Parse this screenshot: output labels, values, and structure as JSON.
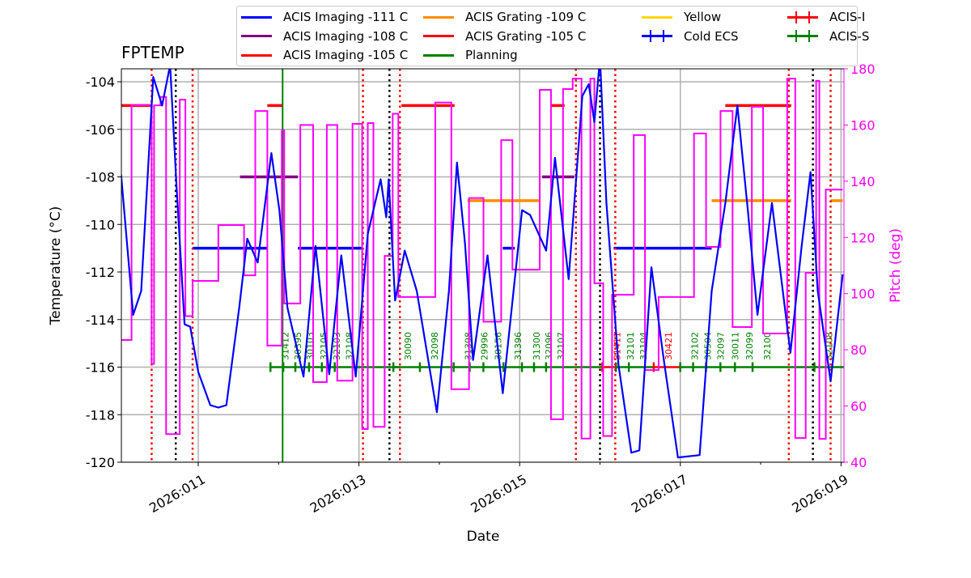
{
  "chart_data": {
    "type": "line",
    "title": "FPTEMP",
    "xlabel": "Date",
    "ylabel": "Temperature ($^\\circ$C)",
    "ylabel_display": "Temperature (°C)",
    "y2label": "Pitch (deg)",
    "xlim": [
      10.04,
      19.02
    ],
    "ylim": [
      -120,
      -103.46
    ],
    "y2lim": [
      40,
      180
    ],
    "grid": true,
    "legend_placement": "top",
    "x_ticks": [
      {
        "day": 11,
        "label": "2026:011"
      },
      {
        "day": 13,
        "label": "2026:013"
      },
      {
        "day": 15,
        "label": "2026:015"
      },
      {
        "day": 17,
        "label": "2026:017"
      },
      {
        "day": 19,
        "label": "2026:019"
      }
    ],
    "y_ticks": [
      -104,
      -106,
      -108,
      -110,
      -112,
      -114,
      -116,
      -118,
      -120
    ],
    "y2_ticks": [
      40,
      60,
      80,
      100,
      120,
      140,
      160,
      180
    ],
    "colors": {
      "temp": "#0000ff",
      "pitch": "#ff00ff",
      "acis_s": "#008000",
      "acis_i": "#ff0000"
    },
    "temperature": [
      [
        10.04,
        -107.9
      ],
      [
        10.19,
        -113.8
      ],
      [
        10.29,
        -112.8
      ],
      [
        10.44,
        -103.8
      ],
      [
        10.55,
        -105.0
      ],
      [
        10.65,
        -103.3
      ],
      [
        10.73,
        -108.4
      ],
      [
        10.83,
        -114.2
      ],
      [
        10.9,
        -114.3
      ],
      [
        11.0,
        -116.2
      ],
      [
        11.15,
        -117.6
      ],
      [
        11.25,
        -117.7
      ],
      [
        11.35,
        -117.6
      ],
      [
        11.51,
        -113.5
      ],
      [
        11.61,
        -110.6
      ],
      [
        11.74,
        -111.6
      ],
      [
        11.91,
        -107.0
      ],
      [
        12.01,
        -109.4
      ],
      [
        12.11,
        -113.5
      ],
      [
        12.31,
        -116.4
      ],
      [
        12.46,
        -110.9
      ],
      [
        12.63,
        -116.3
      ],
      [
        12.78,
        -111.3
      ],
      [
        12.96,
        -116.4
      ],
      [
        13.11,
        -110.4
      ],
      [
        13.27,
        -108.1
      ],
      [
        13.34,
        -109.7
      ],
      [
        13.37,
        -108.1
      ],
      [
        13.45,
        -113.2
      ],
      [
        13.57,
        -111.1
      ],
      [
        13.72,
        -112.8
      ],
      [
        13.97,
        -117.9
      ],
      [
        14.12,
        -112.8
      ],
      [
        14.22,
        -107.4
      ],
      [
        14.32,
        -110.8
      ],
      [
        14.42,
        -115.7
      ],
      [
        14.6,
        -111.3
      ],
      [
        14.79,
        -117.1
      ],
      [
        15.03,
        -109.4
      ],
      [
        15.13,
        -109.6
      ],
      [
        15.33,
        -111.1
      ],
      [
        15.44,
        -107.2
      ],
      [
        15.61,
        -112.3
      ],
      [
        15.78,
        -104.6
      ],
      [
        15.86,
        -104.1
      ],
      [
        15.93,
        -105.7
      ],
      [
        16.0,
        -103.0
      ],
      [
        16.08,
        -109.1
      ],
      [
        16.23,
        -115.9
      ],
      [
        16.39,
        -119.6
      ],
      [
        16.49,
        -119.5
      ],
      [
        16.64,
        -111.8
      ],
      [
        16.79,
        -115.6
      ],
      [
        16.97,
        -119.8
      ],
      [
        17.24,
        -119.7
      ],
      [
        17.39,
        -112.8
      ],
      [
        17.56,
        -109.1
      ],
      [
        17.71,
        -105.0
      ],
      [
        17.84,
        -109.4
      ],
      [
        17.96,
        -113.8
      ],
      [
        18.14,
        -109.1
      ],
      [
        18.37,
        -115.4
      ],
      [
        18.51,
        -110.9
      ],
      [
        18.62,
        -107.8
      ],
      [
        18.71,
        -112.8
      ],
      [
        18.87,
        -116.6
      ],
      [
        19.02,
        -112.1
      ]
    ],
    "pitch": [
      [
        10.04,
        83.5
      ],
      [
        10.17,
        83.5
      ],
      [
        10.17,
        167
      ],
      [
        10.42,
        167
      ],
      [
        10.42,
        75
      ],
      [
        10.45,
        75
      ],
      [
        10.45,
        167
      ],
      [
        10.53,
        167
      ],
      [
        10.53,
        170
      ],
      [
        10.6,
        170
      ],
      [
        10.6,
        50
      ],
      [
        10.77,
        50
      ],
      [
        10.77,
        169
      ],
      [
        10.84,
        169
      ],
      [
        10.84,
        92
      ],
      [
        10.93,
        92
      ],
      [
        10.93,
        104.5
      ],
      [
        11.25,
        104.5
      ],
      [
        11.25,
        124.4
      ],
      [
        11.57,
        124.4
      ],
      [
        11.57,
        106.5
      ],
      [
        11.71,
        106.5
      ],
      [
        11.71,
        165
      ],
      [
        11.86,
        165
      ],
      [
        11.86,
        81.5
      ],
      [
        12.04,
        81.5
      ],
      [
        12.04,
        158
      ],
      [
        12.07,
        158
      ],
      [
        12.07,
        96.5
      ],
      [
        12.27,
        96.5
      ],
      [
        12.27,
        160
      ],
      [
        12.43,
        160
      ],
      [
        12.43,
        68.5
      ],
      [
        12.6,
        68.5
      ],
      [
        12.6,
        160
      ],
      [
        12.73,
        160
      ],
      [
        12.73,
        69
      ],
      [
        12.92,
        69
      ],
      [
        12.92,
        160.4
      ],
      [
        13.04,
        160.4
      ],
      [
        13.04,
        51.8
      ],
      [
        13.11,
        51.8
      ],
      [
        13.11,
        160.7
      ],
      [
        13.18,
        160.7
      ],
      [
        13.18,
        52.6
      ],
      [
        13.32,
        52.6
      ],
      [
        13.32,
        113.4
      ],
      [
        13.42,
        113.4
      ],
      [
        13.42,
        164
      ],
      [
        13.49,
        164
      ],
      [
        13.49,
        98.8
      ],
      [
        13.95,
        98.8
      ],
      [
        13.95,
        168
      ],
      [
        14.15,
        168
      ],
      [
        14.15,
        66
      ],
      [
        14.37,
        66
      ],
      [
        14.37,
        134
      ],
      [
        14.55,
        134
      ],
      [
        14.55,
        90
      ],
      [
        14.77,
        90
      ],
      [
        14.77,
        154.6
      ],
      [
        14.91,
        154.6
      ],
      [
        14.91,
        108.5
      ],
      [
        15.25,
        108.5
      ],
      [
        15.25,
        172.5
      ],
      [
        15.39,
        172.5
      ],
      [
        15.39,
        55.3
      ],
      [
        15.54,
        55.3
      ],
      [
        15.54,
        172.8
      ],
      [
        15.66,
        172.8
      ],
      [
        15.66,
        176.5
      ],
      [
        15.77,
        176.5
      ],
      [
        15.77,
        48.4
      ],
      [
        15.88,
        48.4
      ],
      [
        15.88,
        176.5
      ],
      [
        15.93,
        176.5
      ],
      [
        15.93,
        103.7
      ],
      [
        16.04,
        103.7
      ],
      [
        16.04,
        49.3
      ],
      [
        16.15,
        49.3
      ],
      [
        16.15,
        99.6
      ],
      [
        16.42,
        99.6
      ],
      [
        16.42,
        156.4
      ],
      [
        16.56,
        156.4
      ],
      [
        16.56,
        72.8
      ],
      [
        16.73,
        72.8
      ],
      [
        16.73,
        98.8
      ],
      [
        17.17,
        98.8
      ],
      [
        17.17,
        157
      ],
      [
        17.32,
        157
      ],
      [
        17.32,
        116.6
      ],
      [
        17.5,
        116.6
      ],
      [
        17.5,
        165
      ],
      [
        17.65,
        165
      ],
      [
        17.65,
        88.1
      ],
      [
        17.89,
        88.1
      ],
      [
        17.89,
        166.5
      ],
      [
        18.03,
        166.5
      ],
      [
        18.03,
        85.8
      ],
      [
        18.33,
        85.8
      ],
      [
        18.33,
        176.5
      ],
      [
        18.43,
        176.5
      ],
      [
        18.43,
        48.6
      ],
      [
        18.56,
        48.6
      ],
      [
        18.56,
        107.4
      ],
      [
        18.69,
        107.4
      ],
      [
        18.69,
        175.7
      ],
      [
        18.73,
        175.7
      ],
      [
        18.73,
        48.3
      ],
      [
        18.81,
        48.3
      ],
      [
        18.81,
        137
      ],
      [
        19.02,
        137
      ]
    ],
    "limits": [
      {
        "name": "ACIS Imaging -111 C",
        "value": -111,
        "color": "#0000ff",
        "ranges": [
          [
            10.93,
            11.86
          ],
          [
            12.24,
            13.03
          ],
          [
            14.79,
            14.94
          ],
          [
            16.17,
            17.39
          ]
        ]
      },
      {
        "name": "ACIS Imaging -108 C",
        "value": -108,
        "color": "#800080",
        "ranges": [
          [
            11.52,
            12.24
          ],
          [
            15.28,
            15.68
          ]
        ]
      },
      {
        "name": "ACIS Imaging -105 C",
        "value": -105,
        "color": "#ff0000",
        "ranges": []
      },
      {
        "name": "ACIS Grating -109 C",
        "value": -109,
        "color": "#ff8c00",
        "ranges": [
          [
            14.35,
            15.24
          ],
          [
            17.39,
            18.38
          ],
          [
            18.87,
            19.02
          ]
        ]
      },
      {
        "name": "ACIS Grating -105 C",
        "value": -105,
        "color": "#ff0000",
        "ranges": [
          [
            10.04,
            10.42
          ],
          [
            11.86,
            12.05
          ],
          [
            13.53,
            14.19
          ],
          [
            15.39,
            15.56
          ],
          [
            17.56,
            18.38
          ]
        ]
      }
    ],
    "vlines": {
      "red_dotted": [
        10.42,
        10.93,
        13.05,
        13.51,
        15.7,
        16.19,
        18.35,
        18.87
      ],
      "black_dotted": [
        10.72,
        13.38,
        16.0,
        18.65
      ],
      "planning": [
        12.05
      ]
    },
    "obsid_level": -116,
    "obsids": [
      {
        "id": "31412",
        "start": 12.07,
        "inst": "S"
      },
      {
        "id": "30395",
        "start": 12.23,
        "inst": "S"
      },
      {
        "id": "30103",
        "start": 12.38,
        "inst": "S"
      },
      {
        "id": "32105",
        "start": 12.55,
        "inst": "S"
      },
      {
        "id": "32103",
        "start": 12.71,
        "inst": "S"
      },
      {
        "id": "32108",
        "start": 12.87,
        "inst": "S"
      },
      {
        "id": "30090",
        "start": 13.6,
        "inst": "S"
      },
      {
        "id": "32098",
        "start": 13.93,
        "inst": "S"
      },
      {
        "id": "31398",
        "start": 14.35,
        "inst": "S"
      },
      {
        "id": "29996",
        "start": 14.55,
        "inst": "S"
      },
      {
        "id": "30156",
        "start": 14.72,
        "inst": "S"
      },
      {
        "id": "31396",
        "start": 14.97,
        "inst": "S"
      },
      {
        "id": "31300",
        "start": 15.2,
        "inst": "S"
      },
      {
        "id": "32096",
        "start": 15.35,
        "inst": "S"
      },
      {
        "id": "32107",
        "start": 15.5,
        "inst": "S"
      },
      {
        "id": "31411",
        "start": 16.2,
        "inst": "I"
      },
      {
        "id": "32101",
        "start": 16.37,
        "inst": "S"
      },
      {
        "id": "32104",
        "start": 16.53,
        "inst": "S"
      },
      {
        "id": "30421",
        "start": 16.84,
        "inst": "I"
      },
      {
        "id": "32102",
        "start": 17.17,
        "inst": "S"
      },
      {
        "id": "30504",
        "start": 17.33,
        "inst": "S"
      },
      {
        "id": "32097",
        "start": 17.49,
        "inst": "S"
      },
      {
        "id": "30011",
        "start": 17.67,
        "inst": "S"
      },
      {
        "id": "32099",
        "start": 17.85,
        "inst": "S"
      },
      {
        "id": "32100",
        "start": 18.07,
        "inst": "S"
      },
      {
        "id": "32108",
        "start": 18.84,
        "inst": "S"
      }
    ]
  },
  "legend": [
    {
      "label": "ACIS Imaging -111 C",
      "color": "#0000ff",
      "err": false
    },
    {
      "label": "ACIS Imaging -108 C",
      "color": "#800080",
      "err": false
    },
    {
      "label": "ACIS Imaging -105 C",
      "color": "#ff0000",
      "err": false
    },
    {
      "label": "ACIS Grating -109 C",
      "color": "#ff8c00",
      "err": false
    },
    {
      "label": "ACIS Grating -105 C",
      "color": "#ff0000",
      "err": false
    },
    {
      "label": "Planning",
      "color": "#008000",
      "err": false
    },
    {
      "label": "Yellow",
      "color": "#ffd700",
      "err": false
    },
    {
      "label": "Cold ECS",
      "color": "#0000ff",
      "err": true
    },
    {
      "label": "ACIS-I",
      "color": "#ff0000",
      "err": true
    },
    {
      "label": "ACIS-S",
      "color": "#008000",
      "err": true
    }
  ]
}
